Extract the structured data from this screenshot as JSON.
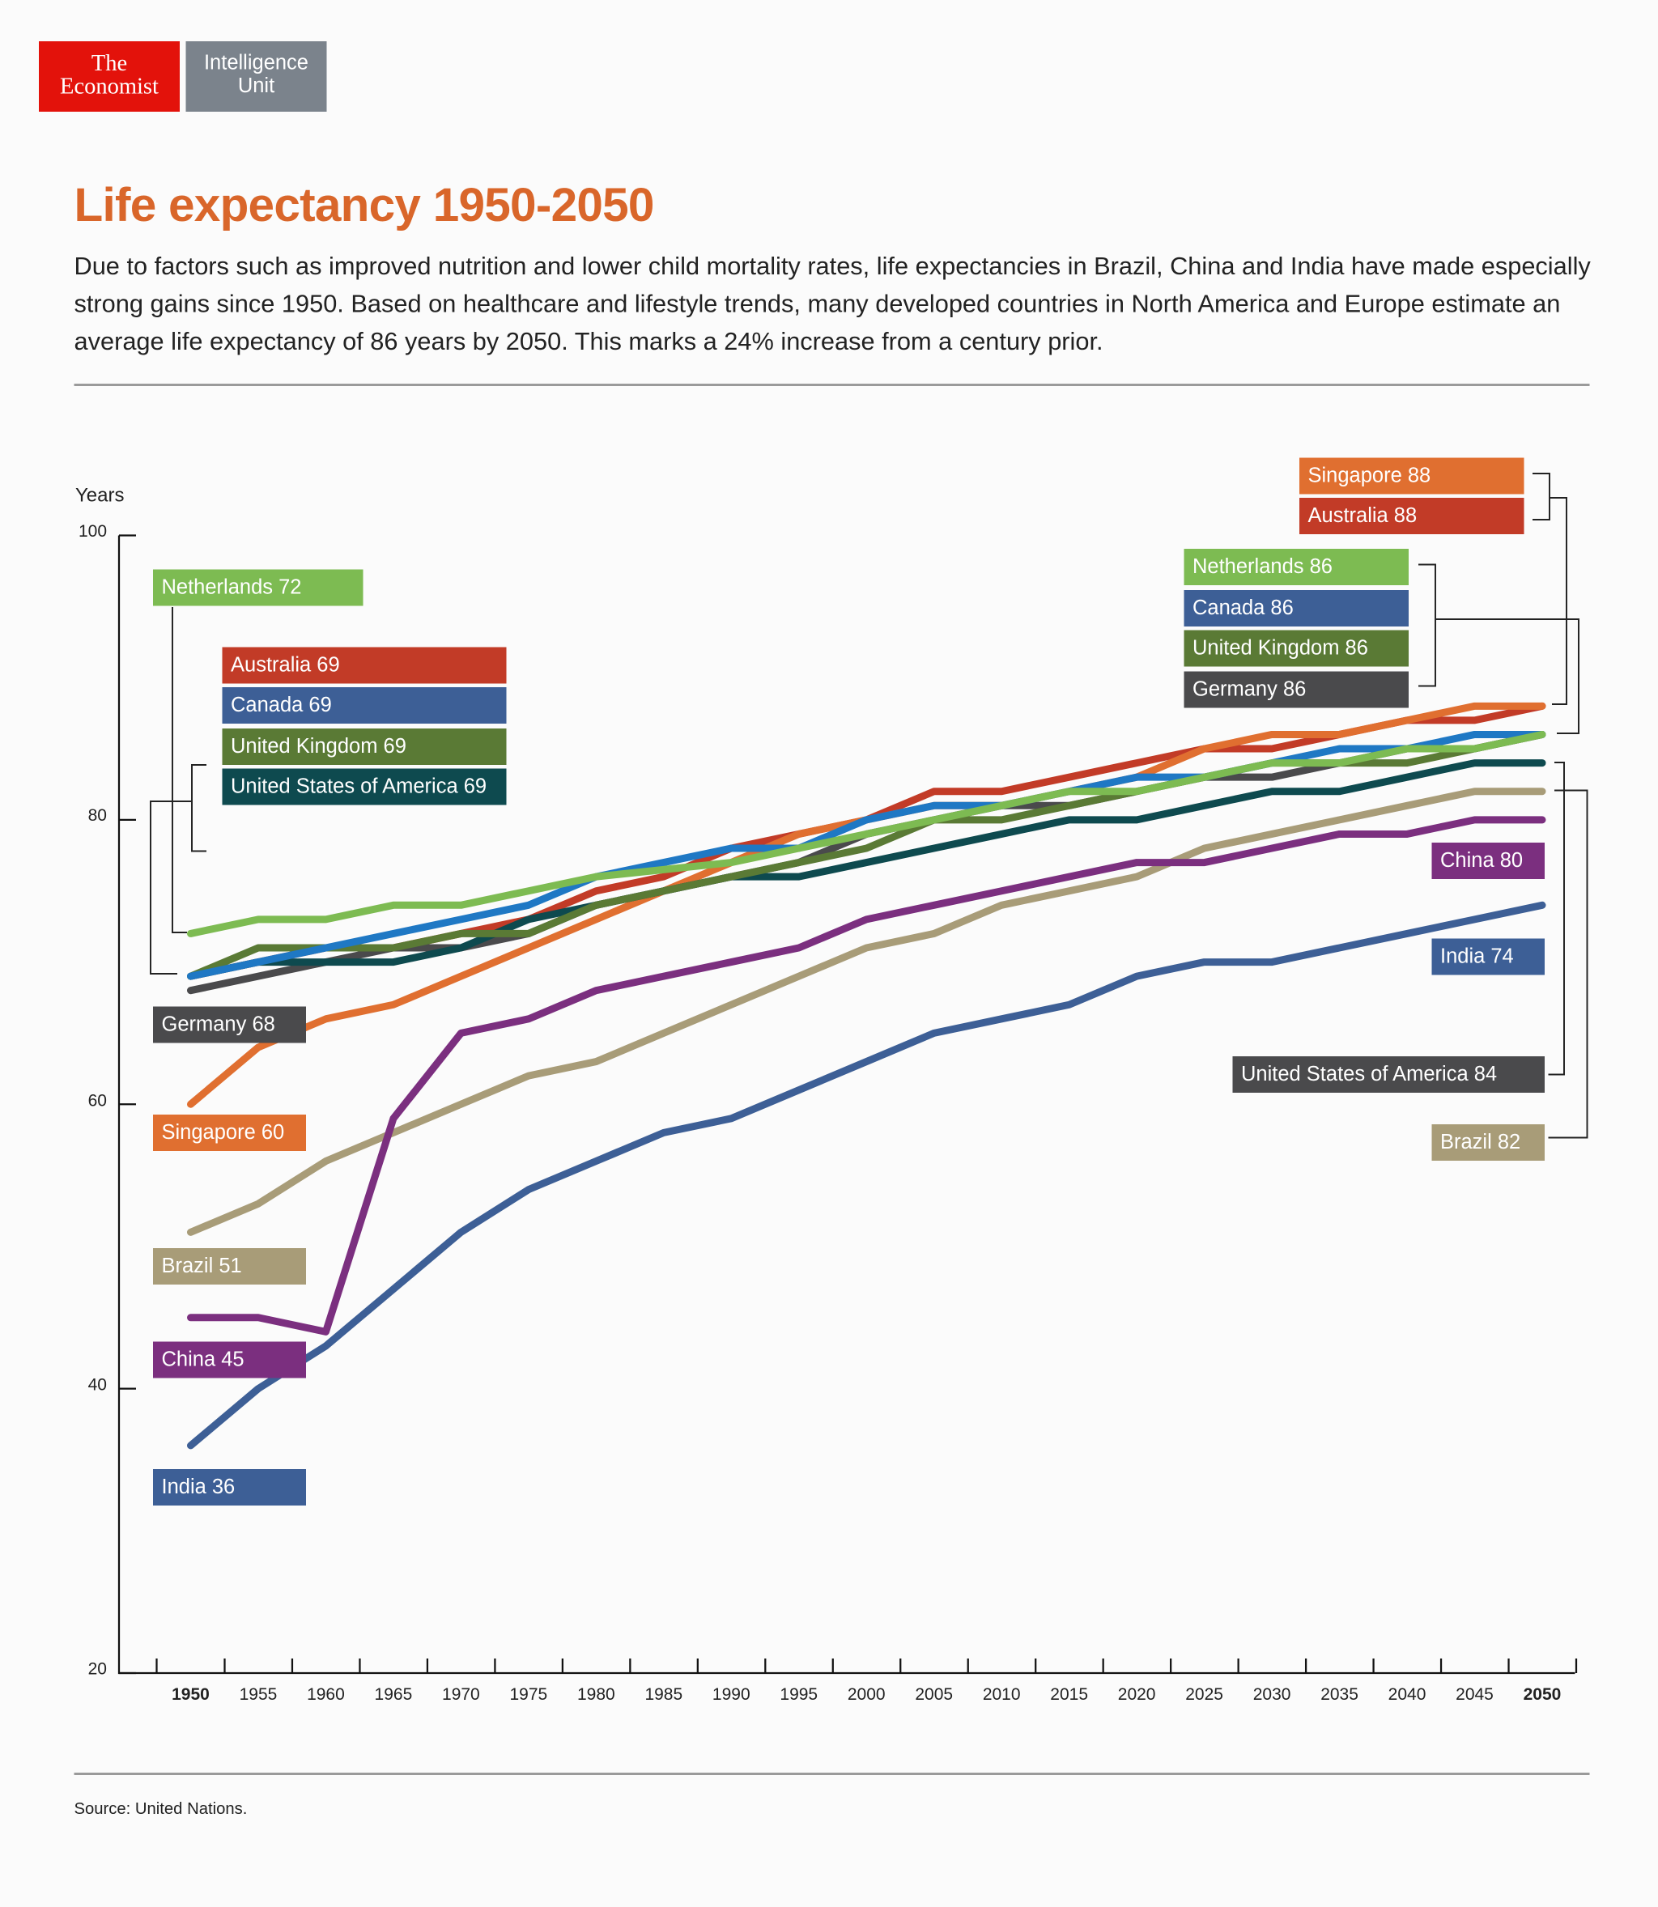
{
  "header": {
    "logo_line1": "The",
    "logo_line2": "Economist",
    "unit_line1": "Intelligence",
    "unit_line2": "Unit"
  },
  "title": "Life expectancy 1950-2050",
  "description": "Due to factors such as improved nutrition and lower child mortality rates, life expectancies in Brazil, China and India have made especially strong gains since 1950. Based on healthcare and lifestyle trends, many developed countries in North America and Europe estimate an average life expectancy of 86 years by 2050. This marks a 24% increase from a century prior.",
  "source": "Source: United Nations.",
  "chart_data": {
    "type": "line",
    "ylabel": "Years",
    "ylim": [
      20,
      100
    ],
    "yticks": [
      100,
      80,
      60,
      40,
      20
    ],
    "x": [
      1950,
      1955,
      1960,
      1965,
      1970,
      1975,
      1980,
      1985,
      1990,
      1995,
      2000,
      2005,
      2010,
      2015,
      2020,
      2025,
      2030,
      2035,
      2040,
      2045,
      2050
    ],
    "xticks_bold": [
      1950,
      2050
    ],
    "grid": false,
    "series": [
      {
        "name": "Netherlands",
        "color": "#7dbb52",
        "values": [
          72,
          73,
          73,
          74,
          74,
          75,
          76,
          76.5,
          77,
          78,
          79,
          80,
          81,
          82,
          82,
          83,
          84,
          84,
          85,
          85,
          86
        ]
      },
      {
        "name": "Canada",
        "color": "#1f78c4",
        "values": [
          69,
          70,
          71,
          72,
          73,
          74,
          76,
          77,
          78,
          78,
          80,
          81,
          81,
          82,
          83,
          83,
          84,
          85,
          85,
          86,
          86
        ]
      },
      {
        "name": "United Kingdom",
        "color": "#5a7a35",
        "values": [
          69,
          71,
          71,
          71,
          72,
          72,
          74,
          75,
          76,
          77,
          78,
          80,
          80,
          81,
          82,
          83,
          84,
          84,
          84,
          85,
          86
        ]
      },
      {
        "name": "United States of America",
        "color": "#0e4a4f",
        "values": [
          69,
          70,
          70,
          70,
          71,
          73,
          74,
          75,
          76,
          76,
          77,
          78,
          79,
          80,
          80,
          81,
          82,
          82,
          83,
          84,
          84
        ]
      },
      {
        "name": "Germany",
        "color": "#4a4a4c",
        "values": [
          68,
          69,
          70,
          71,
          71,
          72,
          74,
          75,
          76,
          77,
          79,
          80,
          81,
          81,
          82,
          83,
          83,
          84,
          85,
          85,
          86
        ]
      },
      {
        "name": "Singapore",
        "color": "#e06f30",
        "values": [
          60,
          64,
          66,
          67,
          69,
          71,
          73,
          75,
          77,
          79,
          80,
          81,
          81,
          82,
          83,
          85,
          86,
          86,
          87,
          88,
          88
        ]
      },
      {
        "name": "Australia",
        "color": "#c23b27",
        "values": [
          69,
          70,
          71,
          71,
          72,
          73,
          75,
          76,
          78,
          79,
          80,
          82,
          82,
          83,
          84,
          85,
          85,
          86,
          87,
          87,
          88
        ]
      },
      {
        "name": "China",
        "color": "#7b2f7f",
        "values": [
          45,
          45,
          44,
          59,
          65,
          66,
          68,
          69,
          70,
          71,
          73,
          74,
          75,
          76,
          77,
          77,
          78,
          79,
          79,
          80,
          80
        ]
      },
      {
        "name": "Brazil",
        "color": "#a89c78",
        "values": [
          51,
          53,
          56,
          58,
          60,
          62,
          63,
          65,
          67,
          69,
          71,
          72,
          74,
          75,
          76,
          78,
          79,
          80,
          81,
          82,
          82
        ]
      },
      {
        "name": "India",
        "color": "#3d5f96",
        "values": [
          36,
          40,
          43,
          47,
          51,
          54,
          56,
          58,
          59,
          61,
          63,
          65,
          66,
          67,
          69,
          70,
          70,
          71,
          72,
          73,
          74
        ]
      }
    ],
    "labels_start": [
      {
        "text": "Netherlands 72",
        "color": "#7dbb52"
      },
      {
        "text": "Australia 69",
        "color": "#c23b27"
      },
      {
        "text": "Canada 69",
        "color": "#3d5f96"
      },
      {
        "text": "United Kingdom 69",
        "color": "#5a7a35"
      },
      {
        "text": "United States of America 69",
        "color": "#0e4a4f"
      },
      {
        "text": "Germany 68",
        "color": "#4a4a4c"
      },
      {
        "text": "Singapore 60",
        "color": "#e06f30"
      },
      {
        "text": "Brazil 51",
        "color": "#a89c78"
      },
      {
        "text": "China 45",
        "color": "#7b2f7f"
      },
      {
        "text": "India 36",
        "color": "#3d5f96"
      }
    ],
    "labels_end": [
      {
        "text": "Singapore 88",
        "color": "#e06f30"
      },
      {
        "text": "Australia 88",
        "color": "#c23b27"
      },
      {
        "text": "Netherlands 86",
        "color": "#7dbb52"
      },
      {
        "text": "Canada 86",
        "color": "#3d5f96"
      },
      {
        "text": "United Kingdom 86",
        "color": "#5a7a35"
      },
      {
        "text": "Germany 86",
        "color": "#4a4a4c"
      },
      {
        "text": "China 80",
        "color": "#7b2f7f"
      },
      {
        "text": "India 74",
        "color": "#3d5f96"
      },
      {
        "text": "United States of America 84",
        "color": "#4a4a4c"
      },
      {
        "text": "Brazil 82",
        "color": "#a89c78"
      }
    ]
  }
}
